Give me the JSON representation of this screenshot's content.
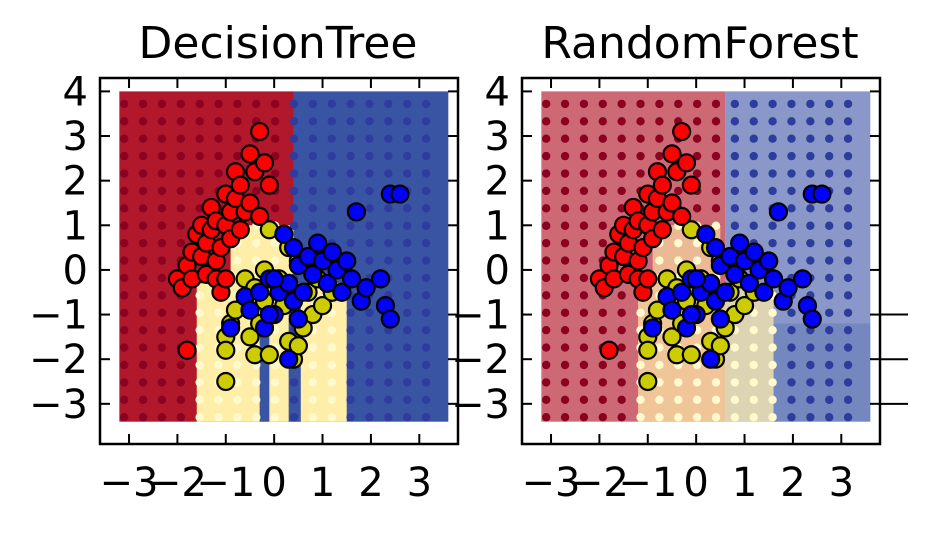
{
  "colors": {
    "red": "#ff0000",
    "yellow": "#cccc00",
    "blue": "#0000ff",
    "region_red": "#b2182b",
    "region_yellow": "#ffeea8",
    "region_blue": "#3a54a4",
    "grid_red": "#8c0020",
    "grid_yellow": "#fffacd",
    "grid_blue": "#2e3c9e"
  },
  "chart_data": [
    {
      "type": "scatter",
      "title": "DecisionTree",
      "xlim": [
        -3.6,
        3.8
      ],
      "ylim": [
        -3.9,
        4.3
      ],
      "xticks": [
        {
          "v": -3,
          "label": "−3"
        },
        {
          "v": -2,
          "label": "−2"
        },
        {
          "v": -1,
          "label": "−1"
        },
        {
          "v": 0,
          "label": "0"
        },
        {
          "v": 1,
          "label": "1"
        },
        {
          "v": 2,
          "label": "2"
        },
        {
          "v": 3,
          "label": "3"
        }
      ],
      "yticks": [
        {
          "v": 4,
          "label": "4"
        },
        {
          "v": 3,
          "label": "3"
        },
        {
          "v": 2,
          "label": "2"
        },
        {
          "v": 1,
          "label": "1"
        },
        {
          "v": 0,
          "label": "0"
        },
        {
          "v": -1,
          "label": "−1"
        },
        {
          "v": -2,
          "label": "−2"
        },
        {
          "v": -3,
          "label": "−3"
        }
      ],
      "regions": [
        {
          "cls": "red",
          "x0": -3.2,
          "x1": 0.4,
          "y0": -3.4,
          "y1": 4.0
        },
        {
          "cls": "blue",
          "x0": 0.4,
          "x1": 3.6,
          "y0": -3.4,
          "y1": 4.0
        },
        {
          "cls": "yellow",
          "x0": -1.6,
          "x1": 1.5,
          "y0": -3.4,
          "y1": -0.3
        },
        {
          "cls": "yellow",
          "x0": -0.9,
          "x1": 0.4,
          "y0": -0.3,
          "y1": 1.0
        },
        {
          "cls": "blue",
          "x0": -0.3,
          "x1": -0.1,
          "y0": -3.4,
          "y1": -0.8
        },
        {
          "cls": "blue",
          "x0": 0.3,
          "x1": 0.55,
          "y0": -3.4,
          "y1": -0.8
        },
        {
          "cls": "blue",
          "x0": 0.8,
          "x1": 1.5,
          "y0": -0.2,
          "y1": 0.5
        }
      ]
    },
    {
      "type": "scatter",
      "title": "RandomForest",
      "xlim": [
        -3.6,
        3.8
      ],
      "ylim": [
        -3.9,
        4.3
      ],
      "xticks": [
        {
          "v": -3,
          "label": "−3"
        },
        {
          "v": -2,
          "label": "−2"
        },
        {
          "v": -1,
          "label": "−1"
        },
        {
          "v": 0,
          "label": "0"
        },
        {
          "v": 1,
          "label": "1"
        },
        {
          "v": 2,
          "label": "2"
        },
        {
          "v": 3,
          "label": "3"
        }
      ],
      "yticks": [
        {
          "v": 4,
          "label": "4"
        },
        {
          "v": 3,
          "label": "3"
        },
        {
          "v": 2,
          "label": "2"
        },
        {
          "v": 1,
          "label": "1"
        },
        {
          "v": 0,
          "label": "0"
        },
        {
          "v": -1,
          "label": "−1"
        },
        {
          "v": -2,
          "label": "−2"
        },
        {
          "v": -3,
          "label": "−3"
        }
      ],
      "regions": [
        {
          "cls": "red",
          "x0": -3.2,
          "x1": 0.6,
          "y0": -3.4,
          "y1": 4.0,
          "opacity": 0.65
        },
        {
          "cls": "blue",
          "x0": 0.6,
          "x1": 3.6,
          "y0": -3.4,
          "y1": 4.0,
          "opacity": 0.6
        },
        {
          "cls": "yellow",
          "x0": -1.2,
          "x1": 1.6,
          "y0": -3.4,
          "y1": -0.3,
          "opacity": 0.7
        },
        {
          "cls": "yellow",
          "x0": -0.9,
          "x1": 0.5,
          "y0": -0.3,
          "y1": 1.0,
          "opacity": 0.6
        },
        {
          "cls": "blue",
          "x0": 1.6,
          "x1": 3.6,
          "y0": -3.4,
          "y1": -1.2,
          "opacity": 0.25
        }
      ]
    }
  ],
  "shared_points": {
    "red": [
      [
        -2.0,
        -0.2
      ],
      [
        -1.9,
        -0.4
      ],
      [
        -1.8,
        0.1
      ],
      [
        -1.7,
        -0.2
      ],
      [
        -1.7,
        0.4
      ],
      [
        -1.6,
        0.8
      ],
      [
        -1.5,
        1.0
      ],
      [
        -1.5,
        0.3
      ],
      [
        -1.4,
        -0.1
      ],
      [
        -1.4,
        0.6
      ],
      [
        -1.3,
        1.4
      ],
      [
        -1.3,
        0.9
      ],
      [
        -1.2,
        1.1
      ],
      [
        -1.2,
        0.2
      ],
      [
        -1.1,
        0.5
      ],
      [
        -1.0,
        1.7
      ],
      [
        -1.0,
        1.0
      ],
      [
        -0.9,
        1.3
      ],
      [
        -0.9,
        0.7
      ],
      [
        -0.8,
        2.2
      ],
      [
        -0.8,
        1.6
      ],
      [
        -0.7,
        1.9
      ],
      [
        -0.7,
        0.9
      ],
      [
        -0.6,
        1.3
      ],
      [
        -0.5,
        2.6
      ],
      [
        -0.5,
        1.5
      ],
      [
        -0.4,
        2.2
      ],
      [
        -0.3,
        3.1
      ],
      [
        -0.3,
        1.2
      ],
      [
        -0.2,
        2.4
      ],
      [
        -0.1,
        1.9
      ],
      [
        -1.2,
        -0.2
      ],
      [
        -1.1,
        -0.5
      ],
      [
        -1.0,
        -0.2
      ],
      [
        -1.8,
        -1.8
      ]
    ],
    "yellow": [
      [
        -1.0,
        -2.5
      ],
      [
        -1.0,
        -1.5
      ],
      [
        -1.0,
        -1.8
      ],
      [
        -0.9,
        -1.2
      ],
      [
        -0.8,
        -0.9
      ],
      [
        -0.6,
        -0.2
      ],
      [
        -0.5,
        -1.5
      ],
      [
        -0.4,
        -1.9
      ],
      [
        -0.4,
        -0.4
      ],
      [
        -0.3,
        -1.2
      ],
      [
        -0.2,
        -0.7
      ],
      [
        -0.1,
        0.9
      ],
      [
        -0.1,
        -1.9
      ],
      [
        0.1,
        -0.2
      ],
      [
        0.2,
        -0.8
      ],
      [
        0.3,
        -1.6
      ],
      [
        0.4,
        -2.0
      ],
      [
        0.5,
        -1.7
      ],
      [
        0.5,
        0.2
      ],
      [
        0.6,
        -1.3
      ],
      [
        0.7,
        -0.5
      ],
      [
        0.8,
        -1.0
      ],
      [
        0.9,
        -0.2
      ],
      [
        1.0,
        -0.8
      ],
      [
        1.2,
        -0.5
      ],
      [
        0.3,
        0.5
      ],
      [
        -0.2,
        0.0
      ]
    ],
    "blue": [
      [
        -0.9,
        -1.3
      ],
      [
        -0.6,
        -0.6
      ],
      [
        -0.5,
        -0.9
      ],
      [
        -0.3,
        -0.5
      ],
      [
        -0.2,
        -1.3
      ],
      [
        -0.1,
        -0.2
      ],
      [
        0.0,
        -1.0
      ],
      [
        0.1,
        -0.5
      ],
      [
        0.2,
        0.8
      ],
      [
        0.3,
        -0.3
      ],
      [
        0.4,
        -0.7
      ],
      [
        0.4,
        0.5
      ],
      [
        0.5,
        0.1
      ],
      [
        0.6,
        -0.5
      ],
      [
        0.7,
        0.3
      ],
      [
        0.8,
        -0.1
      ],
      [
        0.9,
        0.6
      ],
      [
        1.0,
        0.2
      ],
      [
        1.1,
        -0.3
      ],
      [
        1.2,
        0.4
      ],
      [
        1.3,
        0.0
      ],
      [
        1.4,
        -0.5
      ],
      [
        1.5,
        0.2
      ],
      [
        1.6,
        -0.2
      ],
      [
        1.7,
        1.3
      ],
      [
        1.8,
        -0.7
      ],
      [
        1.9,
        -0.4
      ],
      [
        2.2,
        -0.2
      ],
      [
        2.3,
        -0.8
      ],
      [
        2.4,
        -1.1
      ],
      [
        2.4,
        1.7
      ],
      [
        2.6,
        1.7
      ],
      [
        0.3,
        -2.0
      ],
      [
        0.0,
        -0.2
      ],
      [
        0.5,
        -1.1
      ],
      [
        -0.1,
        -1.0
      ]
    ]
  }
}
